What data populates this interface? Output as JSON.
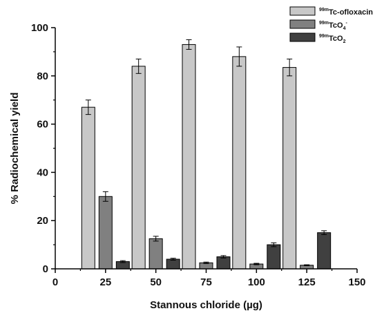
{
  "chart_data": {
    "type": "bar",
    "xlabel": "Stannous chloride (µg)",
    "ylabel": "% Radiochemical yield",
    "xlim": [
      0,
      150
    ],
    "ylim": [
      0,
      100
    ],
    "x_ticks": [
      0,
      25,
      50,
      75,
      100,
      125,
      150
    ],
    "y_ticks": [
      0,
      20,
      40,
      60,
      80,
      100
    ],
    "x": [
      25,
      50,
      75,
      100,
      125
    ],
    "grid": false,
    "legend_position": "top-right",
    "series": [
      {
        "name": "99mTc-ofloxacin",
        "legend": {
          "sup": "99m",
          "main": "Tc-ofloxacin",
          "sub": "",
          "sup2": ""
        },
        "color": "#c8c8c8",
        "values": [
          67,
          84,
          93,
          88,
          83.5
        ],
        "errors": [
          3,
          3,
          2,
          4,
          3.5
        ]
      },
      {
        "name": "99mTcO4-",
        "legend": {
          "sup": "99m",
          "main": "TcO",
          "sub": "4",
          "sup2": "-"
        },
        "color": "#808080",
        "values": [
          30,
          12.5,
          2.5,
          2,
          1.5
        ],
        "errors": [
          2,
          1,
          0.3,
          0.3,
          0.2
        ]
      },
      {
        "name": "99mTcO2",
        "legend": {
          "sup": "99m",
          "main": "TcO",
          "sub": "2",
          "sup2": ""
        },
        "color": "#404040",
        "values": [
          3,
          4,
          5,
          10,
          15
        ],
        "errors": [
          0.4,
          0.4,
          0.5,
          0.8,
          0.8
        ]
      }
    ]
  }
}
